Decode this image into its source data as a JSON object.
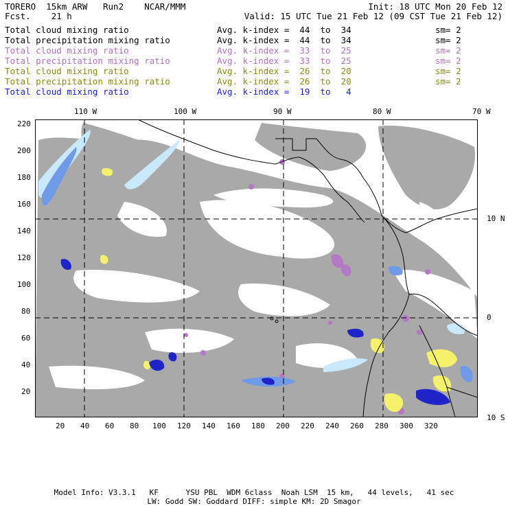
{
  "header": {
    "left_line1": "TORERO  15km ARW   Run2    NCAR/MMM",
    "left_line2": "Fcst.    21 h",
    "init": "Init: 18 UTC Mon 20 Feb 12",
    "valid": "Valid: 15 UTC Tue 21 Feb 12 (09 CST Tue 21 Feb 12)"
  },
  "legend": [
    {
      "field": "Total cloud mixing ratio",
      "index": "Avg. k-index =  44  to  34",
      "sm": "sm= 2",
      "color": "#000000"
    },
    {
      "field": "Total precipitation mixing ratio",
      "index": "Avg. k-index =  44  to  34",
      "sm": "sm= 2",
      "color": "#000000"
    },
    {
      "field": "Total cloud mixing ratio",
      "index": "Avg. k-index =  33  to  25",
      "sm": "sm= 2",
      "color": "#b070c0"
    },
    {
      "field": "Total precipitation mixing ratio",
      "index": "Avg. k-index =  33  to  25",
      "sm": "sm= 2",
      "color": "#b070c0"
    },
    {
      "field": "Total cloud mixing ratio",
      "index": "Avg. k-index =  26  to  20",
      "sm": "sm= 2",
      "color": "#8a8a10"
    },
    {
      "field": "Total precipitation mixing ratio",
      "index": "Avg. k-index =  26  to  20",
      "sm": "sm= 2",
      "color": "#8a8a10"
    },
    {
      "field": "Total cloud mixing ratio",
      "index": "Avg. k-index =  19  to   4",
      "sm": "",
      "color": "#1a1adf"
    }
  ],
  "longitude_labels": [
    "110 W",
    "100 W",
    "90 W",
    "80 W",
    "70 W"
  ],
  "latitude_labels": [
    "10 N",
    "0",
    "10 S"
  ],
  "y_ticks": [
    "220",
    "200",
    "180",
    "160",
    "140",
    "120",
    "100",
    "80",
    "60",
    "40",
    "20"
  ],
  "x_ticks": [
    "20",
    "40",
    "60",
    "80",
    "100",
    "120",
    "140",
    "160",
    "180",
    "200",
    "220",
    "240",
    "260",
    "280",
    "300",
    "320"
  ],
  "footer": {
    "line1": "Model Info: V3.3.1   KF      YSU PBL  WDM 6class  Noah LSM  15 km,   44 levels,   41 sec",
    "line2": "LW: Godd SW: Goddard DIFF: simple KM: 2D Smagor"
  },
  "colors": {
    "high_cloud": "#a9a9a9",
    "mid_cloud": "#b478c4",
    "low_cloud": "#f5f16a",
    "precip_light": "#c8e8fb",
    "precip_mid": "#6f9ae8",
    "precip_strong": "#1e24c8"
  }
}
